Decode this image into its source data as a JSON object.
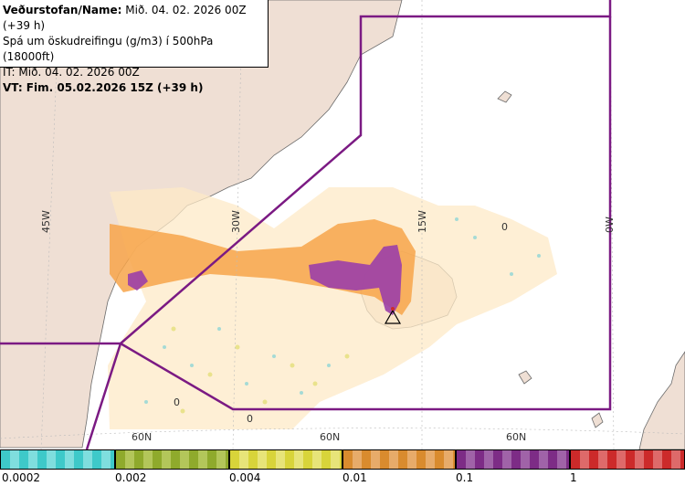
{
  "header": {
    "line1_bold": "Veðurstofan/Name:",
    "line1_rest": " Mið. 04. 02. 2026 00Z (+39 h)",
    "line2": "Spá um öskudreifingu (g/m3) í 500hPa (18000ft)",
    "line3": "IT: Mið. 04. 02. 2026 00Z",
    "line4": "VT: Fim. 05.02.2026 15Z (+39 h)"
  },
  "map_labels": {
    "lon_45w": "45W",
    "lon_30w": "30W",
    "lon_15w": "15W",
    "lon_0w": "0W",
    "lat_60n_a": "60N",
    "lat_60n_b": "60N",
    "lat_60n_c": "60N",
    "zero_a": "0",
    "zero_b": "0",
    "zero_c": "0"
  },
  "legend": {
    "labels": [
      "0.0002",
      "0.002",
      "0.004",
      "0.01",
      "0.1",
      "1"
    ],
    "colors": [
      "#3ec9c9",
      "#8faa2c",
      "#d8d43a",
      "#d98b2e",
      "#7d2c86",
      "#cc2a2a"
    ]
  },
  "colors": {
    "land": "#efdfd4",
    "sea": "#ffffff",
    "boundary": "#7b1a83",
    "ash_low": "#f4c38a",
    "ash_mid": "#f7a54a",
    "ash_high": "#9b3fa8"
  }
}
